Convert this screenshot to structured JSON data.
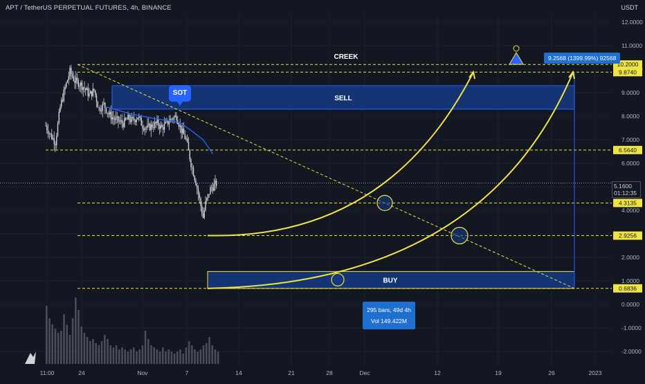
{
  "header": {
    "symbol_title": "APT / TetherUS PERPETUAL FUTURES, 4h, BINANCE",
    "currency": "USDT"
  },
  "current_price": {
    "value": "5.1600",
    "countdown": "01:12:35"
  },
  "labels": {
    "creek": "CREEK",
    "sell": "SELL",
    "buy": "BUY",
    "sot": "SOT",
    "measure": "9.2568 (1399.99%) 92568",
    "range_bars": "295 bars, 49d 4h",
    "range_volume": "Vol 149.422M"
  },
  "colors": {
    "background": "#131722",
    "grid": "#1e222d",
    "axis_text": "#b2b5be",
    "candle": "#d1d4dc",
    "volume": "#5d606b",
    "level_line": "#f0e442",
    "zone_fill": "#163a82",
    "zone_border": "#2962ff",
    "moving_average": "#2962ff",
    "callout": "#1e6fd0"
  },
  "chart_data": {
    "type": "candlestick",
    "timeframe": "4h",
    "x_ticks": [
      "11:00",
      "24",
      "Nov",
      "7",
      "14",
      "21",
      "28",
      "Dec",
      "12",
      "19",
      "26",
      "2023"
    ],
    "y_ticks": [
      "12.0000",
      "11.0000",
      "10.0000",
      "9.0000",
      "8.0000",
      "7.0000",
      "6.0000",
      "5.0000",
      "4.0000",
      "3.0000",
      "2.0000",
      "1.0000",
      "0.0000",
      "-1.0000",
      "-2.0000"
    ],
    "ylim": [
      -2.3,
      12.6
    ],
    "levels": [
      {
        "label": "10.2000",
        "value": 10.2
      },
      {
        "label": "9.8740",
        "value": 9.874
      },
      {
        "label": "6.5640",
        "value": 6.564
      },
      {
        "label": "4.3135",
        "value": 4.3135
      },
      {
        "label": "2.9256",
        "value": 2.9256
      },
      {
        "label": "0.6836",
        "value": 0.6836
      }
    ],
    "zones": [
      {
        "name": "SELL",
        "from": 8.3,
        "to": 9.3,
        "x_start": 0.2
      },
      {
        "name": "BUY",
        "from": 0.68,
        "to": 1.4,
        "x_start": 0.36
      }
    ],
    "price_path": [
      [
        0,
        7.6
      ],
      [
        4,
        7.2
      ],
      [
        8,
        6.9
      ],
      [
        12,
        8.4
      ],
      [
        16,
        9.2
      ],
      [
        20,
        9.9
      ],
      [
        24,
        9.5
      ],
      [
        28,
        9.4
      ],
      [
        32,
        9.2
      ],
      [
        36,
        8.9
      ],
      [
        40,
        9.1
      ],
      [
        44,
        8.3
      ],
      [
        48,
        8.5
      ],
      [
        52,
        8.1
      ],
      [
        56,
        7.9
      ],
      [
        60,
        7.8
      ],
      [
        64,
        7.7
      ],
      [
        68,
        7.9
      ],
      [
        72,
        7.8
      ],
      [
        76,
        8.0
      ],
      [
        80,
        7.6
      ],
      [
        84,
        7.5
      ],
      [
        88,
        7.6
      ],
      [
        92,
        7.7
      ],
      [
        96,
        7.5
      ],
      [
        100,
        7.7
      ],
      [
        104,
        7.9
      ],
      [
        108,
        8.0
      ],
      [
        112,
        7.4
      ],
      [
        116,
        7.0
      ],
      [
        120,
        6.0
      ],
      [
        124,
        5.2
      ],
      [
        128,
        4.2
      ],
      [
        130,
        3.7
      ],
      [
        132,
        4.3
      ],
      [
        136,
        4.9
      ],
      [
        140,
        5.1
      ],
      [
        142,
        5.16
      ]
    ],
    "moving_average": [
      [
        50,
        8.4
      ],
      [
        70,
        8.1
      ],
      [
        90,
        7.9
      ],
      [
        110,
        7.75
      ],
      [
        120,
        7.4
      ],
      [
        130,
        7.0
      ],
      [
        138,
        6.4
      ]
    ],
    "volume": [
      2.8,
      2.2,
      1.9,
      1.7,
      1.5,
      1.6,
      2.4,
      1.9,
      1.4,
      2.2,
      3.2,
      2.6,
      1.8,
      1.5,
      1.3,
      1.1,
      1.2,
      1.0,
      0.9,
      1.1,
      1.4,
      1.2,
      0.9,
      0.8,
      0.9,
      0.7,
      0.8,
      0.7,
      0.6,
      0.7,
      0.8,
      0.6,
      0.7,
      0.9,
      1.6,
      1.2,
      0.9,
      0.8,
      0.7,
      0.6,
      0.8,
      0.6,
      0.7,
      0.6,
      0.5,
      0.6,
      0.7,
      0.5,
      0.8,
      1.1,
      0.9,
      0.7,
      0.6,
      0.7,
      0.9,
      1.0,
      1.3,
      0.9,
      0.7,
      0.6
    ]
  }
}
